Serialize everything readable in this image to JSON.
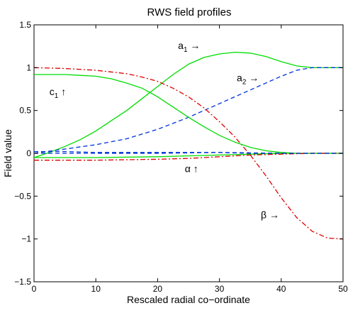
{
  "chart_data": {
    "type": "line",
    "title": "RWS field profiles",
    "xlabel": "Rescaled radial co−ordinate",
    "ylabel": "Field value",
    "xlim": [
      0,
      50
    ],
    "ylim": [
      -1.5,
      1.5
    ],
    "xticks": [
      0,
      10,
      20,
      30,
      40,
      50
    ],
    "xtick_labels": [
      "0",
      "10",
      "20",
      "30",
      "40",
      "50"
    ],
    "yticks": [
      1.5,
      1,
      0.5,
      0,
      -0.5,
      -1,
      -1.5
    ],
    "ytick_labels": [
      "1.5",
      "1",
      "0.5",
      "0",
      "−0.5",
      "−1",
      "−1.5"
    ],
    "grid": false,
    "legend": "none",
    "series": [
      {
        "color": "#00dd00",
        "style": "solid",
        "x": [
          0,
          2.5,
          5,
          7.5,
          10,
          12.5,
          15,
          17.5,
          20,
          22.5,
          25,
          27.5,
          30,
          32.5,
          35,
          37.5,
          40,
          42.5,
          45,
          47.5,
          50
        ],
        "y": [
          -0.05,
          0.01,
          0.08,
          0.16,
          0.26,
          0.38,
          0.5,
          0.64,
          0.78,
          0.92,
          1.04,
          1.12,
          1.16,
          1.18,
          1.17,
          1.13,
          1.07,
          1.02,
          1.0,
          1.0,
          1.0
        ]
      },
      {
        "color": "#0033dd",
        "style": "dashed",
        "x": [
          0,
          5,
          10,
          15,
          20,
          25,
          30,
          35,
          40,
          42.5,
          45,
          47.5,
          50
        ],
        "y": [
          0.0,
          0.05,
          0.1,
          0.17,
          0.28,
          0.42,
          0.58,
          0.74,
          0.9,
          0.97,
          1.0,
          1.0,
          1.0
        ]
      },
      {
        "color": "#dd0000",
        "style": "dashdot",
        "x": [
          0,
          5,
          10,
          15,
          17.5,
          20,
          22.5,
          25,
          27.5,
          30,
          32.5,
          35,
          37.5,
          40,
          42.5,
          45,
          47.5,
          50
        ],
        "y": [
          1.0,
          0.99,
          0.97,
          0.93,
          0.89,
          0.84,
          0.76,
          0.66,
          0.53,
          0.37,
          0.19,
          -0.02,
          -0.26,
          -0.52,
          -0.75,
          -0.91,
          -0.99,
          -1.0
        ]
      },
      {
        "color": "#00dd00",
        "style": "solid",
        "x": [
          0,
          2.5,
          5,
          7.5,
          10,
          12.5,
          15,
          17.5,
          20,
          22.5,
          25,
          27.5,
          30,
          32.5,
          35,
          37.5,
          40,
          42.5,
          45,
          47.5,
          50
        ],
        "y": [
          0.92,
          0.92,
          0.92,
          0.91,
          0.9,
          0.87,
          0.82,
          0.76,
          0.66,
          0.54,
          0.42,
          0.31,
          0.21,
          0.13,
          0.07,
          0.03,
          0.01,
          0.0,
          0.0,
          0.0,
          0.0
        ]
      },
      {
        "color": "#00dd00",
        "style": "solid",
        "x": [
          0,
          10,
          20,
          25,
          30,
          35,
          40,
          45,
          50
        ],
        "y": [
          -0.05,
          -0.05,
          -0.04,
          -0.03,
          -0.02,
          -0.01,
          0.0,
          0.0,
          0.0
        ]
      },
      {
        "color": "#0033dd",
        "style": "dashed",
        "x": [
          0,
          10,
          20,
          30,
          40,
          45,
          50
        ],
        "y": [
          0.0,
          0.0,
          0.0,
          0.01,
          0.0,
          0.0,
          0.0
        ]
      },
      {
        "color": "#dd0000",
        "style": "dashdot",
        "x": [
          0,
          10,
          20,
          25,
          30,
          35,
          40,
          45,
          50
        ],
        "y": [
          -0.08,
          -0.08,
          -0.07,
          -0.06,
          -0.04,
          -0.02,
          -0.01,
          0.0,
          0.0
        ]
      },
      {
        "color": "#0033dd",
        "style": "dashed",
        "x": [
          0,
          5,
          10,
          15,
          20,
          25,
          30,
          35,
          40,
          45,
          50
        ],
        "y": [
          0.02,
          0.02,
          0.01,
          0.01,
          0.01,
          0.01,
          0.01,
          0.0,
          0.0,
          0.0,
          0.0
        ]
      }
    ],
    "annotations": [
      {
        "text": "a",
        "sub": "1",
        "after": " →",
        "x": 23.3,
        "y": 1.22
      },
      {
        "text": "a",
        "sub": "2",
        "after": " →",
        "x": 32.8,
        "y": 0.84
      },
      {
        "text": "c",
        "sub": "1",
        "after": " ↑",
        "x": 2.5,
        "y": 0.68
      },
      {
        "text": "α ↑",
        "sub": "",
        "after": "",
        "x": 24.4,
        "y": -0.22
      },
      {
        "text": "β →",
        "sub": "",
        "after": "",
        "x": 36.7,
        "y": -0.76
      }
    ]
  }
}
